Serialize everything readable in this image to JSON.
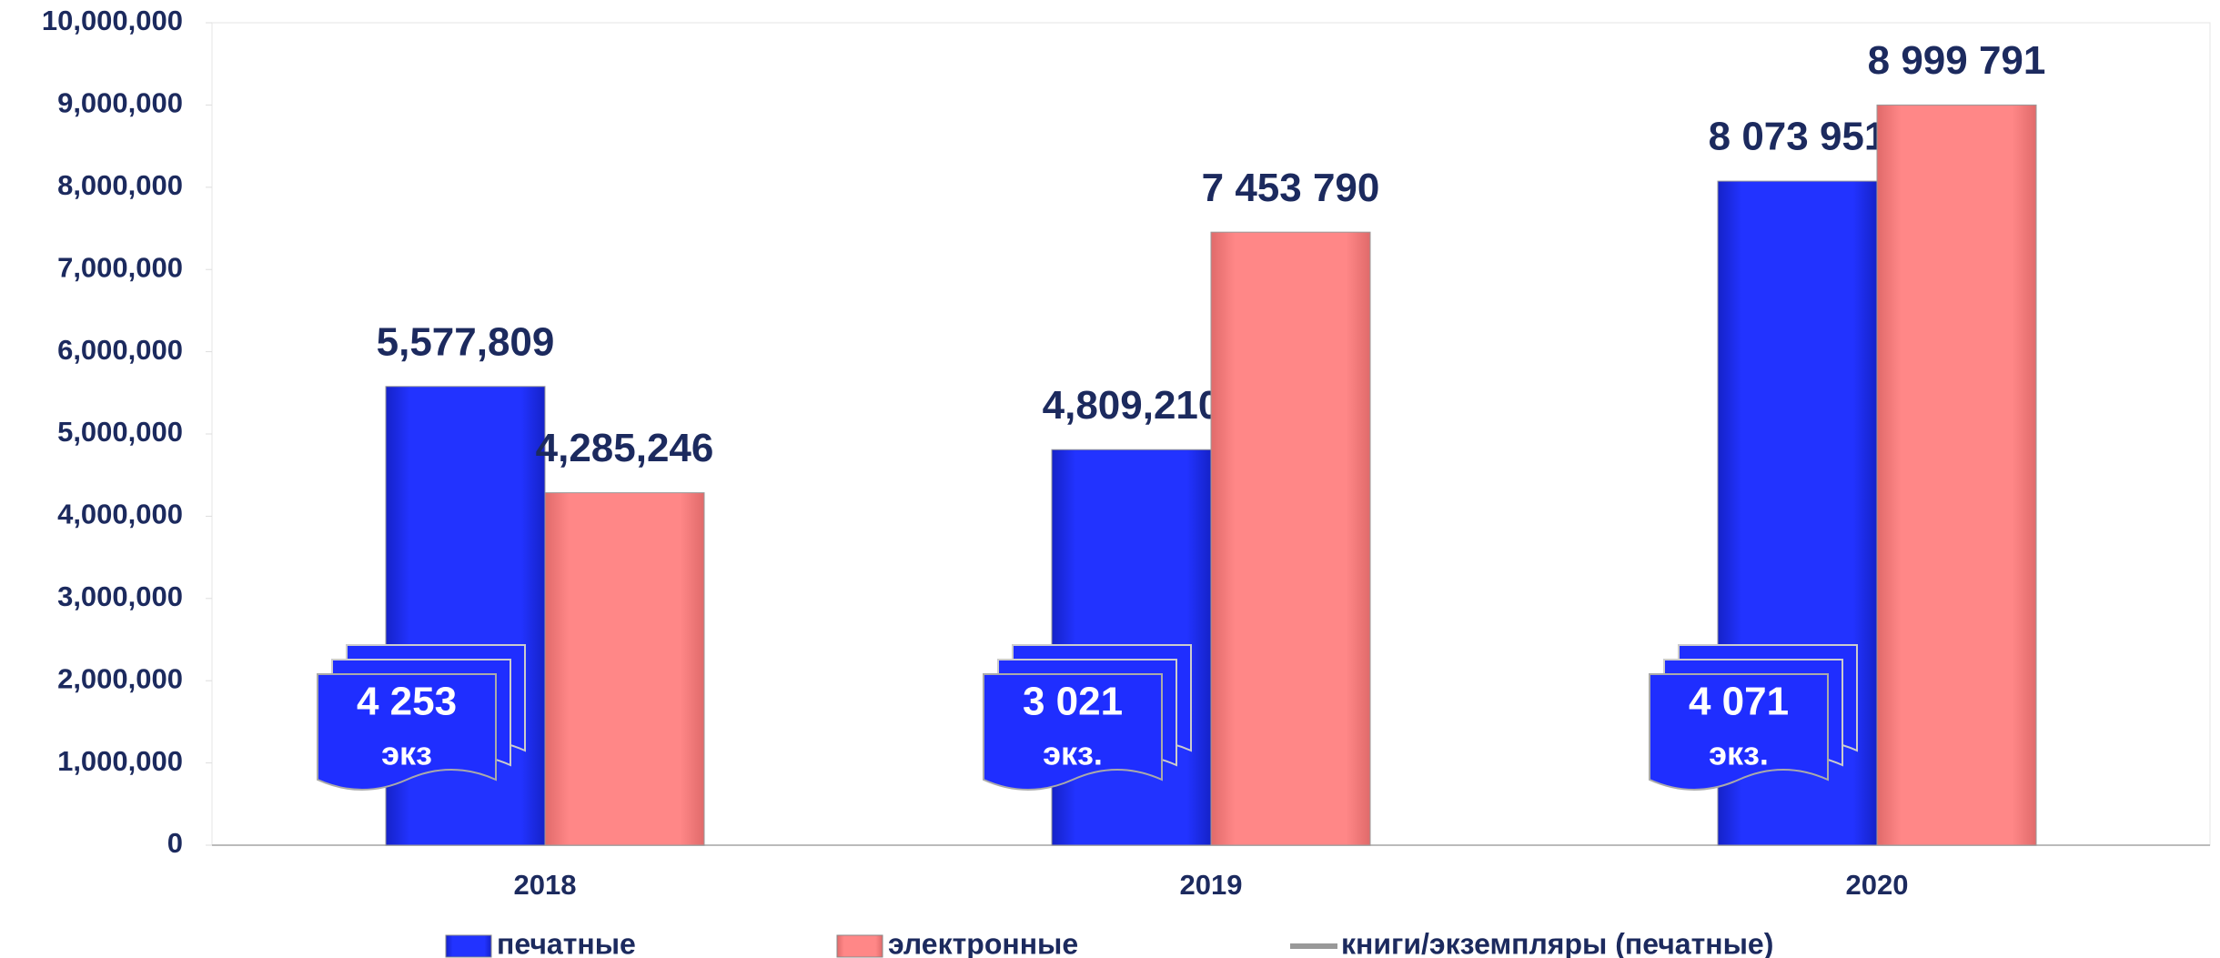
{
  "chart_data": {
    "type": "bar",
    "categories": [
      "2018",
      "2019",
      "2020"
    ],
    "series": [
      {
        "name": "печатные",
        "color": "#1f2eff",
        "values": [
          5577809,
          4809210,
          8073951
        ],
        "value_labels": [
          "5,577,809",
          "4,809,210",
          "8 073 951"
        ]
      },
      {
        "name": "электронные",
        "color": "#ff8585",
        "values": [
          4285246,
          7453790,
          8999791
        ],
        "value_labels": [
          "4,285,246",
          "7 453 790",
          "8 999 791"
        ]
      },
      {
        "name": "книги/экземпляры (печатные)",
        "color": "#999999",
        "axis": "y2",
        "values": [
          4253,
          3021,
          4071
        ],
        "value_labels": [
          [
            "4 253",
            "экз"
          ],
          [
            "3 021",
            "экз."
          ],
          [
            "4 071",
            "экз."
          ]
        ]
      }
    ],
    "ylim": [
      0,
      10000000
    ],
    "yticks": [
      0,
      {
        "value": 1000000,
        "label": "1,000,000"
      },
      {
        "value": 2000000,
        "label": "2,000,000"
      },
      {
        "value": 3000000,
        "label": "3,000,000"
      },
      {
        "value": 4000000,
        "label": "4,000,000"
      },
      {
        "value": 5000000,
        "label": "5,000,000"
      },
      {
        "value": 6000000,
        "label": "6,000,000"
      },
      {
        "value": 7000000,
        "label": "7,000,000"
      },
      {
        "value": 8000000,
        "label": "8,000,000"
      },
      {
        "value": 9000000,
        "label": "9,000,000"
      },
      {
        "value": 10000000,
        "label": "10,000,000"
      }
    ]
  }
}
